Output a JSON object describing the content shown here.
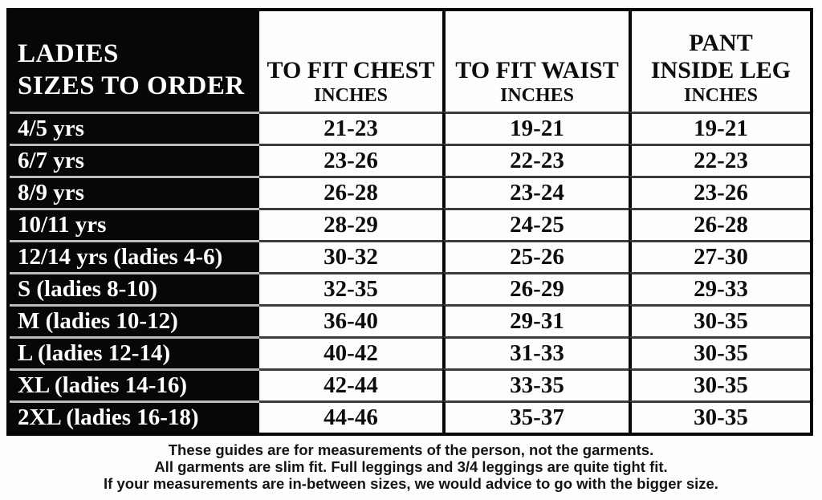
{
  "chart_data": {
    "type": "table",
    "title": "LADIES SIZES TO ORDER",
    "columns": [
      {
        "id": "size",
        "line1": "LADIES",
        "line2": "SIZES TO ORDER"
      },
      {
        "id": "chest",
        "line1": "TO FIT CHEST",
        "line2": "INCHES"
      },
      {
        "id": "waist",
        "line1": "TO FIT WAIST",
        "line2": "INCHES"
      },
      {
        "id": "leg",
        "line1": "PANT",
        "line2": "INSIDE LEG",
        "line3": "INCHES"
      }
    ],
    "units": "inches",
    "rows": [
      {
        "size": "4/5 yrs",
        "chest": "21-23",
        "waist": "19-21",
        "leg": "19-21"
      },
      {
        "size": "6/7 yrs",
        "chest": "23-26",
        "waist": "22-23",
        "leg": "22-23"
      },
      {
        "size": "8/9 yrs",
        "chest": "26-28",
        "waist": "23-24",
        "leg": "23-26"
      },
      {
        "size": "10/11 yrs",
        "chest": "28-29",
        "waist": "24-25",
        "leg": "26-28"
      },
      {
        "size": "12/14 yrs (ladies 4-6)",
        "chest": "30-32",
        "waist": "25-26",
        "leg": "27-30"
      },
      {
        "size": "S (ladies 8-10)",
        "chest": "32-35",
        "waist": "26-29",
        "leg": "29-33"
      },
      {
        "size": "M (ladies 10-12)",
        "chest": "36-40",
        "waist": "29-31",
        "leg": "30-35"
      },
      {
        "size": "L (ladies 12-14)",
        "chest": "40-42",
        "waist": "31-33",
        "leg": "30-35"
      },
      {
        "size": "XL (ladies 14-16)",
        "chest": "42-44",
        "waist": "33-35",
        "leg": "30-35"
      },
      {
        "size": "2XL (ladies 16-18)",
        "chest": "44-46",
        "waist": "35-37",
        "leg": "30-35"
      }
    ],
    "notes": [
      "These guides are for measurements of the person, not the garments.",
      "All garments are slim fit. Full leggings and 3/4 leggings are quite tight fit.",
      "If your measurements are in-between sizes, we would advice to go with the bigger size."
    ],
    "layout": {
      "grid": "on",
      "header_column_style": "white-on-black"
    }
  },
  "colors": {
    "header_bg": "#070707",
    "table_border": "#060606",
    "row_line_on_white": "#3c3c3c",
    "row_line_on_black": "#bdbdbd",
    "text_dark": "#0d0d0d",
    "text_light": "#ffffff",
    "background": "#fdfdfd"
  }
}
